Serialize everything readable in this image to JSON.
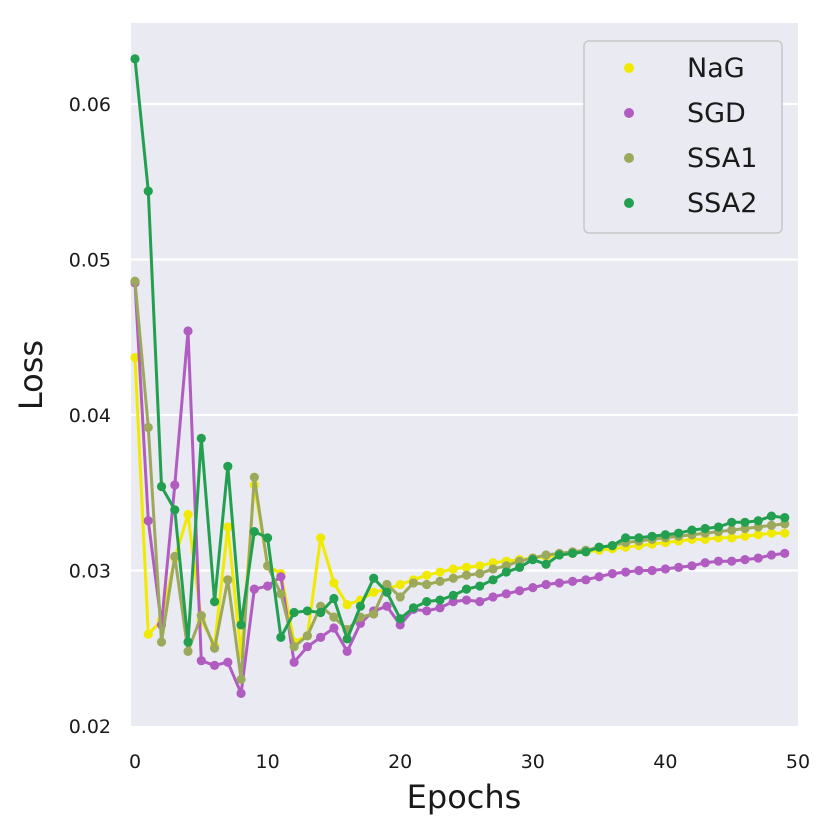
{
  "chart_data": {
    "type": "line",
    "title": "",
    "xlabel": "Epochs",
    "ylabel": "Loss",
    "xlim": [
      0,
      50
    ],
    "ylim": [
      0.02,
      0.065
    ],
    "xticks": [
      0,
      10,
      20,
      30,
      40,
      50
    ],
    "xtick_labels": [
      "0",
      "10",
      "20",
      "30",
      "40",
      "50"
    ],
    "yticks": [
      0.02,
      0.03,
      0.04,
      0.05,
      0.06
    ],
    "ytick_labels": [
      "0.02",
      "0.03",
      "0.04",
      "0.05",
      "0.06"
    ],
    "grid": true,
    "legend_position": "top-right",
    "x": [
      0,
      1,
      2,
      3,
      4,
      5,
      6,
      7,
      8,
      9,
      10,
      11,
      12,
      13,
      14,
      15,
      16,
      17,
      18,
      19,
      20,
      21,
      22,
      23,
      24,
      25,
      26,
      27,
      28,
      29,
      30,
      31,
      32,
      33,
      34,
      35,
      36,
      37,
      38,
      39,
      40,
      41,
      42,
      43,
      44,
      45,
      46,
      47,
      48,
      49
    ],
    "series": [
      {
        "name": "NaG",
        "color": "#f0ea00",
        "values": [
          0.0437,
          0.0259,
          0.0268,
          0.0308,
          0.0336,
          0.0268,
          0.0252,
          0.0328,
          0.0246,
          0.0355,
          0.0303,
          0.0298,
          0.0254,
          0.0258,
          0.0321,
          0.0292,
          0.0278,
          0.0281,
          0.0286,
          0.0288,
          0.0291,
          0.0294,
          0.0297,
          0.0299,
          0.0301,
          0.0302,
          0.0303,
          0.0305,
          0.0306,
          0.0307,
          0.0308,
          0.0309,
          0.031,
          0.0311,
          0.0312,
          0.0313,
          0.0314,
          0.0315,
          0.0316,
          0.0317,
          0.0318,
          0.0319,
          0.032,
          0.032,
          0.0321,
          0.0321,
          0.0322,
          0.0323,
          0.0324,
          0.0324
        ]
      },
      {
        "name": "SGD",
        "color": "#b05cc0",
        "values": [
          0.0485,
          0.0332,
          0.0265,
          0.0355,
          0.0454,
          0.0242,
          0.0239,
          0.0241,
          0.0221,
          0.0288,
          0.029,
          0.0296,
          0.0241,
          0.0251,
          0.0257,
          0.0263,
          0.0248,
          0.0266,
          0.0274,
          0.0277,
          0.0265,
          0.0275,
          0.0274,
          0.0276,
          0.028,
          0.0281,
          0.028,
          0.0283,
          0.0285,
          0.0287,
          0.0289,
          0.0291,
          0.0292,
          0.0293,
          0.0294,
          0.0296,
          0.0298,
          0.0299,
          0.03,
          0.03,
          0.0301,
          0.0302,
          0.0303,
          0.0305,
          0.0306,
          0.0306,
          0.0307,
          0.0308,
          0.031,
          0.0311
        ]
      },
      {
        "name": "SSA1",
        "color": "#9ca95c",
        "values": [
          0.0486,
          0.0392,
          0.0254,
          0.0309,
          0.0248,
          0.0271,
          0.025,
          0.0294,
          0.023,
          0.036,
          0.0303,
          0.0285,
          0.0251,
          0.0258,
          0.0277,
          0.027,
          0.0262,
          0.027,
          0.0272,
          0.0291,
          0.0283,
          0.0292,
          0.0291,
          0.0293,
          0.0295,
          0.0297,
          0.0298,
          0.0301,
          0.0303,
          0.0306,
          0.0308,
          0.031,
          0.0311,
          0.0312,
          0.0313,
          0.0315,
          0.0316,
          0.0318,
          0.0319,
          0.032,
          0.0321,
          0.0322,
          0.0323,
          0.0324,
          0.0325,
          0.0326,
          0.0327,
          0.0328,
          0.0329,
          0.033
        ]
      },
      {
        "name": "SSA2",
        "color": "#22a050",
        "values": [
          0.0629,
          0.0544,
          0.0354,
          0.0339,
          0.0254,
          0.0385,
          0.028,
          0.0367,
          0.0265,
          0.0325,
          0.0321,
          0.0257,
          0.0273,
          0.0274,
          0.0273,
          0.0282,
          0.0256,
          0.0277,
          0.0295,
          0.0286,
          0.0269,
          0.0276,
          0.028,
          0.0281,
          0.0284,
          0.0288,
          0.029,
          0.0294,
          0.0299,
          0.0302,
          0.0307,
          0.0304,
          0.031,
          0.0311,
          0.0312,
          0.0315,
          0.0316,
          0.0321,
          0.0321,
          0.0322,
          0.0323,
          0.0324,
          0.0326,
          0.0327,
          0.0328,
          0.0331,
          0.0331,
          0.0332,
          0.0335,
          0.0334
        ]
      }
    ]
  }
}
